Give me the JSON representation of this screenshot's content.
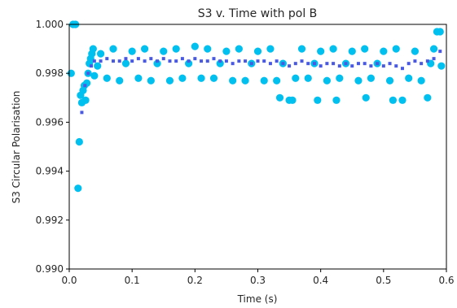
{
  "chart_data": {
    "type": "scatter",
    "title": "S3 v. Time with pol B",
    "xlabel": "Time (s)",
    "ylabel": "S3 Circular Polarisation",
    "xlim": [
      0.0,
      0.6
    ],
    "ylim": [
      0.99,
      1.0
    ],
    "xticks": [
      "0.0",
      "0.1",
      "0.2",
      "0.3",
      "0.4",
      "0.5",
      "0.6"
    ],
    "yticks": [
      "0.990",
      "0.992",
      "0.994",
      "0.996",
      "0.998",
      "1.000"
    ],
    "grid": false,
    "legend": "none",
    "colors": {
      "points": "#00c0f0",
      "mean": "#4a5ae0"
    },
    "series": [
      {
        "marker": "circle",
        "color": "#00c0f0",
        "points": [
          [
            0.003,
            0.998
          ],
          [
            0.006,
            1.0
          ],
          [
            0.01,
            1.0
          ],
          [
            0.014,
            0.9933
          ],
          [
            0.016,
            0.9952
          ],
          [
            0.018,
            0.9971
          ],
          [
            0.02,
            0.9968
          ],
          [
            0.022,
            0.9973
          ],
          [
            0.024,
            0.9975
          ],
          [
            0.026,
            0.9969
          ],
          [
            0.028,
            0.9976
          ],
          [
            0.03,
            0.998
          ],
          [
            0.032,
            0.9984
          ],
          [
            0.034,
            0.9986
          ],
          [
            0.036,
            0.9988
          ],
          [
            0.038,
            0.999
          ],
          [
            0.04,
            0.9979
          ],
          [
            0.045,
            0.9983
          ],
          [
            0.05,
            0.9988
          ],
          [
            0.06,
            0.9978
          ],
          [
            0.07,
            0.999
          ],
          [
            0.08,
            0.9977
          ],
          [
            0.09,
            0.9984
          ],
          [
            0.1,
            0.9989
          ],
          [
            0.11,
            0.9978
          ],
          [
            0.12,
            0.999
          ],
          [
            0.13,
            0.9977
          ],
          [
            0.14,
            0.9984
          ],
          [
            0.15,
            0.9989
          ],
          [
            0.16,
            0.9977
          ],
          [
            0.17,
            0.999
          ],
          [
            0.18,
            0.9978
          ],
          [
            0.19,
            0.9984
          ],
          [
            0.2,
            0.9991
          ],
          [
            0.21,
            0.9978
          ],
          [
            0.22,
            0.999
          ],
          [
            0.23,
            0.9978
          ],
          [
            0.24,
            0.9984
          ],
          [
            0.25,
            0.9989
          ],
          [
            0.26,
            0.9977
          ],
          [
            0.27,
            0.999
          ],
          [
            0.28,
            0.9977
          ],
          [
            0.29,
            0.9984
          ],
          [
            0.3,
            0.9989
          ],
          [
            0.31,
            0.9977
          ],
          [
            0.32,
            0.999
          ],
          [
            0.33,
            0.9977
          ],
          [
            0.335,
            0.997
          ],
          [
            0.34,
            0.9984
          ],
          [
            0.35,
            0.9969
          ],
          [
            0.355,
            0.9969
          ],
          [
            0.36,
            0.9978
          ],
          [
            0.37,
            0.999
          ],
          [
            0.38,
            0.9978
          ],
          [
            0.39,
            0.9984
          ],
          [
            0.395,
            0.9969
          ],
          [
            0.4,
            0.9989
          ],
          [
            0.41,
            0.9977
          ],
          [
            0.42,
            0.999
          ],
          [
            0.425,
            0.9969
          ],
          [
            0.43,
            0.9978
          ],
          [
            0.44,
            0.9984
          ],
          [
            0.45,
            0.9989
          ],
          [
            0.46,
            0.9977
          ],
          [
            0.47,
            0.999
          ],
          [
            0.472,
            0.997
          ],
          [
            0.48,
            0.9978
          ],
          [
            0.49,
            0.9984
          ],
          [
            0.5,
            0.9989
          ],
          [
            0.51,
            0.9977
          ],
          [
            0.515,
            0.9969
          ],
          [
            0.52,
            0.999
          ],
          [
            0.53,
            0.9969
          ],
          [
            0.54,
            0.9978
          ],
          [
            0.55,
            0.9989
          ],
          [
            0.56,
            0.9977
          ],
          [
            0.57,
            0.997
          ],
          [
            0.575,
            0.9984
          ],
          [
            0.58,
            0.999
          ],
          [
            0.585,
            0.9997
          ],
          [
            0.59,
            0.9997
          ],
          [
            0.592,
            0.9983
          ]
        ]
      },
      {
        "marker": "square",
        "color": "#4a5ae0",
        "points": [
          [
            0.02,
            0.9964
          ],
          [
            0.025,
            0.9975
          ],
          [
            0.03,
            0.998
          ],
          [
            0.035,
            0.9983
          ],
          [
            0.04,
            0.9985
          ],
          [
            0.05,
            0.9985
          ],
          [
            0.06,
            0.9986
          ],
          [
            0.07,
            0.9985
          ],
          [
            0.08,
            0.9985
          ],
          [
            0.09,
            0.9986
          ],
          [
            0.1,
            0.9985
          ],
          [
            0.11,
            0.9986
          ],
          [
            0.12,
            0.9985
          ],
          [
            0.13,
            0.9986
          ],
          [
            0.14,
            0.9985
          ],
          [
            0.15,
            0.9986
          ],
          [
            0.16,
            0.9985
          ],
          [
            0.17,
            0.9985
          ],
          [
            0.18,
            0.9986
          ],
          [
            0.19,
            0.9985
          ],
          [
            0.2,
            0.9986
          ],
          [
            0.21,
            0.9985
          ],
          [
            0.22,
            0.9985
          ],
          [
            0.23,
            0.9986
          ],
          [
            0.24,
            0.9985
          ],
          [
            0.25,
            0.9985
          ],
          [
            0.26,
            0.9984
          ],
          [
            0.27,
            0.9985
          ],
          [
            0.28,
            0.9985
          ],
          [
            0.29,
            0.9984
          ],
          [
            0.3,
            0.9985
          ],
          [
            0.31,
            0.9985
          ],
          [
            0.32,
            0.9984
          ],
          [
            0.33,
            0.9985
          ],
          [
            0.34,
            0.9984
          ],
          [
            0.35,
            0.9983
          ],
          [
            0.36,
            0.9984
          ],
          [
            0.37,
            0.9985
          ],
          [
            0.38,
            0.9984
          ],
          [
            0.39,
            0.9984
          ],
          [
            0.4,
            0.9983
          ],
          [
            0.41,
            0.9984
          ],
          [
            0.42,
            0.9984
          ],
          [
            0.43,
            0.9983
          ],
          [
            0.44,
            0.9984
          ],
          [
            0.45,
            0.9983
          ],
          [
            0.46,
            0.9984
          ],
          [
            0.47,
            0.9984
          ],
          [
            0.48,
            0.9983
          ],
          [
            0.49,
            0.9984
          ],
          [
            0.5,
            0.9983
          ],
          [
            0.51,
            0.9984
          ],
          [
            0.52,
            0.9983
          ],
          [
            0.53,
            0.9982
          ],
          [
            0.54,
            0.9984
          ],
          [
            0.55,
            0.9985
          ],
          [
            0.56,
            0.9984
          ],
          [
            0.57,
            0.9985
          ],
          [
            0.58,
            0.9986
          ],
          [
            0.59,
            0.9989
          ]
        ]
      }
    ]
  }
}
